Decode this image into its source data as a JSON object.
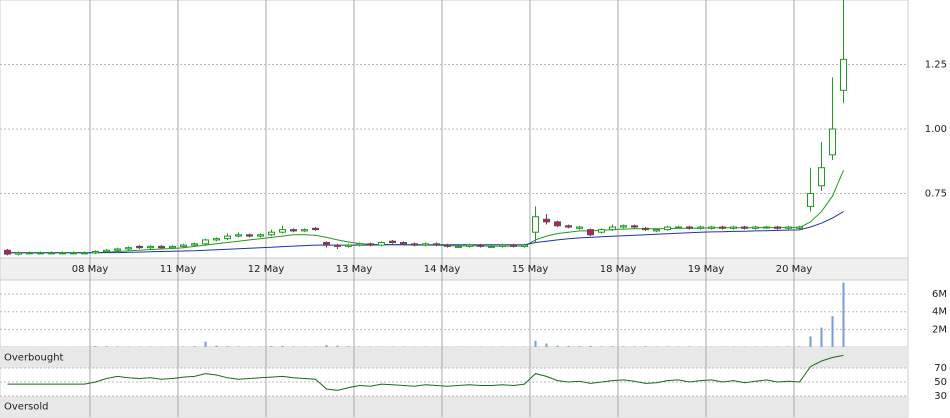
{
  "chart_data": [
    {
      "type": "candlestick",
      "categories": [
        null,
        null,
        null,
        null,
        null,
        null,
        null,
        null,
        "08 May",
        null,
        null,
        null,
        null,
        null,
        null,
        null,
        "11 May",
        null,
        null,
        null,
        null,
        null,
        null,
        null,
        "12 May",
        null,
        null,
        null,
        null,
        null,
        null,
        null,
        "13 May",
        null,
        null,
        null,
        null,
        null,
        null,
        null,
        "14 May",
        null,
        null,
        null,
        null,
        null,
        null,
        null,
        "15 May",
        null,
        null,
        null,
        null,
        null,
        null,
        null,
        "18 May",
        null,
        null,
        null,
        null,
        null,
        null,
        null,
        "19 May",
        null,
        null,
        null,
        null,
        null,
        null,
        null,
        "20 May",
        null,
        null,
        null,
        null
      ],
      "open": [
        0.53,
        0.515,
        0.52,
        0.52,
        0.52,
        0.52,
        0.52,
        0.52,
        0.52,
        0.525,
        0.53,
        0.535,
        0.545,
        0.54,
        0.545,
        0.54,
        0.545,
        0.55,
        0.555,
        0.57,
        0.575,
        0.585,
        0.59,
        0.585,
        0.59,
        0.6,
        0.61,
        0.605,
        0.615,
        0.56,
        0.55,
        0.545,
        0.55,
        0.555,
        0.55,
        0.565,
        0.56,
        0.555,
        0.55,
        0.555,
        0.55,
        0.545,
        0.545,
        0.55,
        0.545,
        0.545,
        0.55,
        0.545,
        0.6,
        0.65,
        0.64,
        0.625,
        0.615,
        0.61,
        0.6,
        0.61,
        0.62,
        0.625,
        0.615,
        0.605,
        0.61,
        0.62,
        0.62,
        0.615,
        0.615,
        0.62,
        0.615,
        0.62,
        0.615,
        0.62,
        0.62,
        0.615,
        0.615,
        0.7,
        0.78,
        0.9,
        1.15
      ],
      "high": [
        0.535,
        0.525,
        0.525,
        0.525,
        0.525,
        0.525,
        0.525,
        0.525,
        0.53,
        0.535,
        0.54,
        0.545,
        0.55,
        0.55,
        0.55,
        0.55,
        0.555,
        0.56,
        0.575,
        0.58,
        0.595,
        0.6,
        0.595,
        0.595,
        0.61,
        0.625,
        0.615,
        0.615,
        0.62,
        0.565,
        0.555,
        0.555,
        0.56,
        0.56,
        0.565,
        0.57,
        0.565,
        0.56,
        0.56,
        0.56,
        0.555,
        0.55,
        0.555,
        0.555,
        0.55,
        0.555,
        0.555,
        0.555,
        0.7,
        0.67,
        0.645,
        0.63,
        0.625,
        0.615,
        0.615,
        0.63,
        0.63,
        0.63,
        0.62,
        0.615,
        0.625,
        0.625,
        0.625,
        0.625,
        0.625,
        0.625,
        0.625,
        0.625,
        0.625,
        0.625,
        0.625,
        0.625,
        0.625,
        0.85,
        0.95,
        1.2,
        1.5
      ],
      "low": [
        0.51,
        0.51,
        0.515,
        0.515,
        0.515,
        0.515,
        0.515,
        0.515,
        0.515,
        0.52,
        0.525,
        0.53,
        0.535,
        0.535,
        0.535,
        0.535,
        0.54,
        0.545,
        0.55,
        0.565,
        0.57,
        0.58,
        0.58,
        0.58,
        0.585,
        0.595,
        0.6,
        0.6,
        0.605,
        0.54,
        0.535,
        0.54,
        0.545,
        0.545,
        0.545,
        0.555,
        0.55,
        0.545,
        0.545,
        0.545,
        0.54,
        0.54,
        0.54,
        0.54,
        0.54,
        0.54,
        0.54,
        0.54,
        0.56,
        0.63,
        0.62,
        0.615,
        0.61,
        0.585,
        0.595,
        0.605,
        0.615,
        0.615,
        0.605,
        0.6,
        0.605,
        0.615,
        0.61,
        0.61,
        0.61,
        0.61,
        0.61,
        0.61,
        0.61,
        0.615,
        0.61,
        0.61,
        0.61,
        0.68,
        0.76,
        0.88,
        1.1
      ],
      "close": [
        0.515,
        0.52,
        0.52,
        0.52,
        0.52,
        0.52,
        0.52,
        0.52,
        0.525,
        0.53,
        0.535,
        0.54,
        0.54,
        0.545,
        0.54,
        0.545,
        0.55,
        0.555,
        0.57,
        0.575,
        0.585,
        0.59,
        0.585,
        0.59,
        0.6,
        0.61,
        0.605,
        0.61,
        0.61,
        0.55,
        0.545,
        0.55,
        0.555,
        0.55,
        0.56,
        0.56,
        0.555,
        0.55,
        0.555,
        0.55,
        0.545,
        0.545,
        0.55,
        0.545,
        0.545,
        0.55,
        0.545,
        0.55,
        0.66,
        0.64,
        0.625,
        0.62,
        0.62,
        0.59,
        0.61,
        0.62,
        0.625,
        0.62,
        0.61,
        0.61,
        0.62,
        0.62,
        0.615,
        0.62,
        0.62,
        0.615,
        0.62,
        0.615,
        0.62,
        0.62,
        0.615,
        0.62,
        0.62,
        0.75,
        0.85,
        1.0,
        1.27
      ],
      "series": [
        {
          "color": "#229922",
          "values": [
            0.52,
            0.52,
            0.52,
            0.52,
            0.52,
            0.52,
            0.52,
            0.52,
            0.52,
            0.522,
            0.525,
            0.528,
            0.53,
            0.533,
            0.535,
            0.537,
            0.54,
            0.545,
            0.55,
            0.555,
            0.56,
            0.565,
            0.57,
            0.575,
            0.58,
            0.585,
            0.59,
            0.59,
            0.588,
            0.58,
            0.57,
            0.562,
            0.556,
            0.553,
            0.552,
            0.552,
            0.551,
            0.55,
            0.55,
            0.55,
            0.548,
            0.547,
            0.547,
            0.547,
            0.546,
            0.546,
            0.546,
            0.546,
            0.57,
            0.585,
            0.595,
            0.6,
            0.605,
            0.605,
            0.607,
            0.61,
            0.612,
            0.613,
            0.613,
            0.613,
            0.614,
            0.615,
            0.615,
            0.616,
            0.617,
            0.617,
            0.617,
            0.617,
            0.618,
            0.618,
            0.618,
            0.618,
            0.618,
            0.64,
            0.68,
            0.74,
            0.84
          ]
        },
        {
          "color": "#2233aa",
          "values": [
            0.52,
            0.52,
            0.52,
            0.52,
            0.52,
            0.52,
            0.52,
            0.52,
            0.52,
            0.521,
            0.521,
            0.522,
            0.523,
            0.524,
            0.525,
            0.526,
            0.527,
            0.528,
            0.53,
            0.532,
            0.534,
            0.536,
            0.538,
            0.54,
            0.542,
            0.544,
            0.546,
            0.548,
            0.55,
            0.55,
            0.55,
            0.55,
            0.55,
            0.55,
            0.551,
            0.551,
            0.551,
            0.551,
            0.551,
            0.551,
            0.551,
            0.551,
            0.551,
            0.551,
            0.551,
            0.551,
            0.551,
            0.551,
            0.56,
            0.565,
            0.57,
            0.575,
            0.578,
            0.58,
            0.582,
            0.584,
            0.586,
            0.588,
            0.59,
            0.592,
            0.594,
            0.596,
            0.598,
            0.6,
            0.601,
            0.602,
            0.603,
            0.604,
            0.605,
            0.606,
            0.607,
            0.608,
            0.609,
            0.62,
            0.635,
            0.655,
            0.68
          ]
        }
      ],
      "up_color": "#229922",
      "down_color": "#c2185b",
      "ylim": [
        0.5,
        1.5
      ],
      "yticks": [
        0.75,
        {
          "value": 1,
          "label": "1.00"
        },
        1.25
      ],
      "grid": true
    },
    {
      "type": "bar",
      "color": "#7a9bd8",
      "values": [
        50000,
        20000,
        10000,
        10000,
        10000,
        10000,
        10000,
        20000,
        100000,
        80000,
        60000,
        40000,
        50000,
        40000,
        30000,
        40000,
        60000,
        80000,
        600000,
        150000,
        80000,
        60000,
        50000,
        40000,
        100000,
        120000,
        60000,
        50000,
        40000,
        200000,
        150000,
        80000,
        60000,
        50000,
        40000,
        50000,
        40000,
        30000,
        40000,
        30000,
        30000,
        40000,
        30000,
        40000,
        30000,
        40000,
        30000,
        50000,
        700000,
        400000,
        150000,
        100000,
        80000,
        120000,
        60000,
        80000,
        80000,
        60000,
        70000,
        50000,
        60000,
        50000,
        60000,
        50000,
        50000,
        40000,
        50000,
        40000,
        50000,
        40000,
        50000,
        60000,
        80000,
        1200000,
        2200000,
        3500000,
        7300000
      ],
      "ylim": [
        0,
        7600000
      ],
      "yticks": [
        {
          "value": 2000000,
          "label": "2M"
        },
        {
          "value": 4000000,
          "label": "4M"
        },
        {
          "value": 6000000,
          "label": "6M"
        }
      ],
      "grid": true
    },
    {
      "type": "line",
      "color": "#1a6a1a",
      "values": [
        47,
        47,
        47,
        47,
        47,
        47,
        47,
        47,
        50,
        55,
        58,
        56,
        55,
        56,
        54,
        55,
        57,
        58,
        62,
        60,
        56,
        54,
        55,
        56,
        57,
        58,
        56,
        55,
        54,
        40,
        38,
        42,
        45,
        44,
        47,
        46,
        45,
        44,
        46,
        45,
        44,
        45,
        46,
        45,
        45,
        46,
        45,
        47,
        62,
        58,
        52,
        50,
        51,
        48,
        50,
        52,
        53,
        51,
        48,
        49,
        52,
        53,
        50,
        52,
        53,
        50,
        52,
        49,
        51,
        53,
        50,
        51,
        50,
        72,
        80,
        85,
        88
      ],
      "ylim": [
        0,
        100
      ],
      "yticks": [
        30,
        50,
        70
      ],
      "bands": [
        {
          "label": "Overbought",
          "range": [
            70,
            100
          ]
        },
        {
          "label": "Oversold",
          "range": [
            0,
            30
          ]
        }
      ],
      "grid": true
    }
  ]
}
